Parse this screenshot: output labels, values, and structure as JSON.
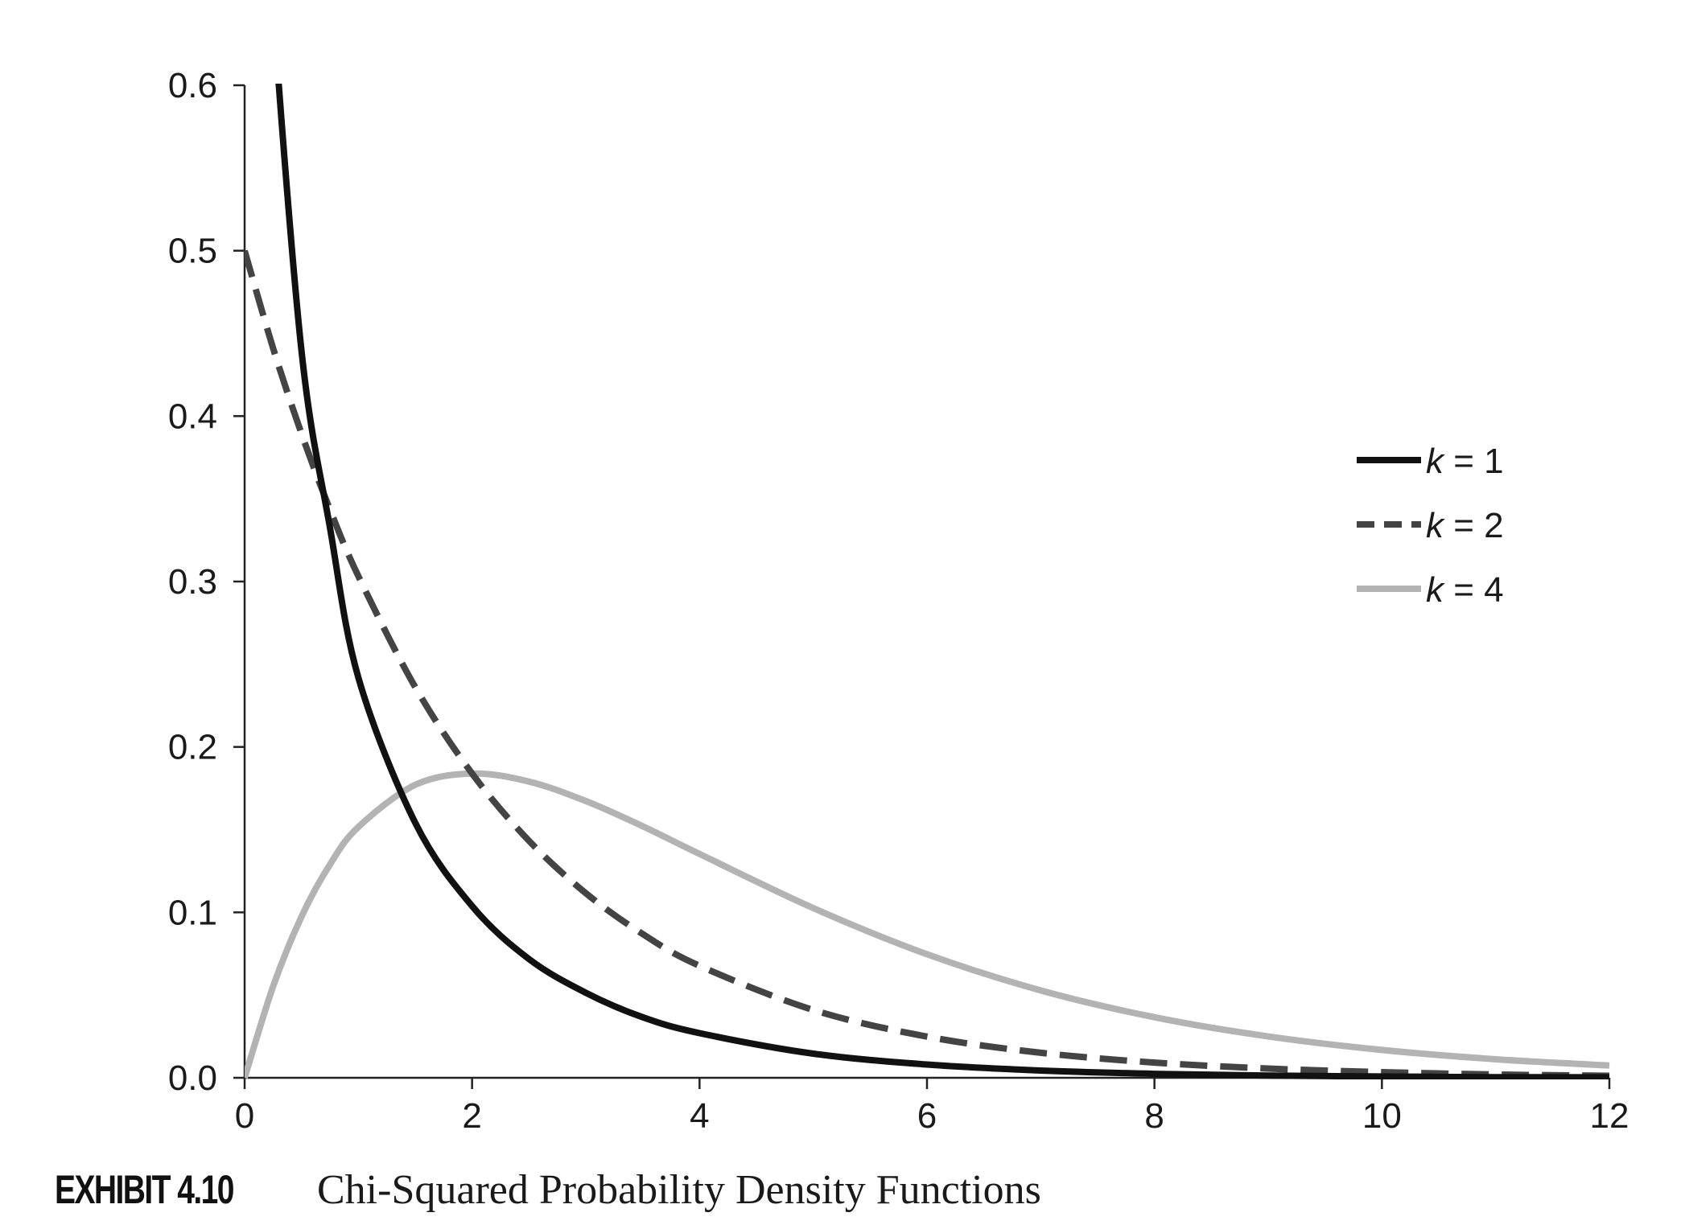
{
  "chart_data": {
    "type": "line",
    "xlim": [
      0,
      12
    ],
    "ylim": [
      0,
      0.6
    ],
    "x_ticks": [
      "0",
      "2",
      "4",
      "6",
      "8",
      "10",
      "12"
    ],
    "y_ticks": [
      "0.0",
      "0.1",
      "0.2",
      "0.3",
      "0.4",
      "0.5",
      "0.6"
    ],
    "grid": false,
    "legend_position": "right",
    "x": [
      0,
      0.25,
      0.5,
      0.75,
      1,
      1.5,
      2,
      2.5,
      3,
      3.5,
      4,
      5,
      6,
      7,
      8,
      9,
      10,
      11,
      12
    ],
    "series": [
      {
        "name": "k = 1",
        "style": "solid",
        "color": "#111111",
        "values": [
          null,
          0.7041,
          0.4394,
          0.3327,
          0.242,
          0.1542,
          0.1038,
          0.0718,
          0.0514,
          0.0366,
          0.027,
          0.0146,
          0.008,
          0.0044,
          0.0024,
          0.0013,
          0.0008,
          0.0004,
          0.0003
        ]
      },
      {
        "name": "k = 2",
        "style": "dashed",
        "color": "#444444",
        "values": [
          0.5,
          0.4412,
          0.3894,
          0.3436,
          0.3033,
          0.2362,
          0.1839,
          0.1433,
          0.1116,
          0.0869,
          0.0677,
          0.041,
          0.0249,
          0.0151,
          0.0092,
          0.0056,
          0.0034,
          0.002,
          0.0012
        ]
      },
      {
        "name": "k = 4",
        "style": "solid",
        "color": "#b3b3b3",
        "values": [
          0.0,
          0.0551,
          0.0974,
          0.1289,
          0.1516,
          0.1771,
          0.1839,
          0.1791,
          0.1673,
          0.1521,
          0.1353,
          0.1026,
          0.0747,
          0.0528,
          0.0366,
          0.025,
          0.0168,
          0.0112,
          0.0074
        ]
      }
    ]
  },
  "legend": {
    "items": [
      {
        "k": "k",
        "rest": " = 1"
      },
      {
        "k": "k",
        "rest": " = 2"
      },
      {
        "k": "k",
        "rest": " = 4"
      }
    ]
  },
  "caption": {
    "label": "EXHIBIT 4.10",
    "title": "Chi-Squared Probability Density Functions"
  }
}
